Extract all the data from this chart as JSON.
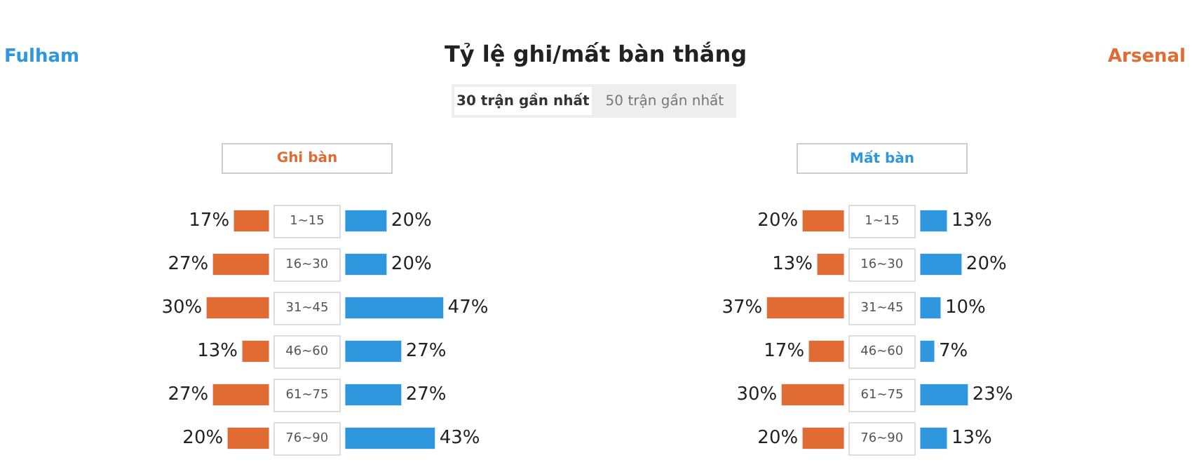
{
  "chart_data": [
    {
      "type": "other",
      "title": "Tỷ lệ ghi/mất bàn thắng",
      "annotations": [
        "Fulham",
        "Arsenal",
        "30 trận gần nhất",
        "50 trận gần nhất"
      ]
    },
    {
      "type": "bar",
      "orientation": "horizontal",
      "title": "Ghi bàn",
      "categories": [
        "1~15",
        "16~30",
        "31~45",
        "46~60",
        "61~75",
        "76~90"
      ],
      "series": [
        {
          "color": "#e06b33",
          "values": [
            17,
            27,
            30,
            13,
            27,
            20
          ],
          "value_labels": [
            "17%",
            "27%",
            "30%",
            "13%",
            "27%",
            "20%"
          ]
        }
      ]
    },
    {
      "type": "bar",
      "orientation": "horizontal",
      "series": [
        {
          "color": "#2f97dd",
          "values": [
            20,
            20,
            47,
            27,
            27,
            43
          ],
          "value_labels": [
            "20%",
            "20%",
            "47%",
            "27%",
            "27%",
            "43%"
          ]
        }
      ]
    },
    {
      "type": "bar",
      "orientation": "horizontal",
      "title": "Mất bàn",
      "categories": [
        "1~15",
        "16~30",
        "31~45",
        "46~60",
        "61~75",
        "76~90"
      ],
      "series": [
        {
          "color": "#e06b33",
          "values": [
            20,
            13,
            37,
            17,
            30,
            20
          ],
          "value_labels": [
            "20%",
            "13%",
            "37%",
            "17%",
            "30%",
            "20%"
          ]
        }
      ]
    },
    {
      "type": "bar",
      "orientation": "horizontal",
      "series": [
        {
          "color": "#2f97dd",
          "values": [
            13,
            20,
            10,
            7,
            23,
            13
          ],
          "value_labels": [
            "13%",
            "20%",
            "10%",
            "7%",
            "23%",
            "13%"
          ]
        }
      ]
    }
  ]
}
